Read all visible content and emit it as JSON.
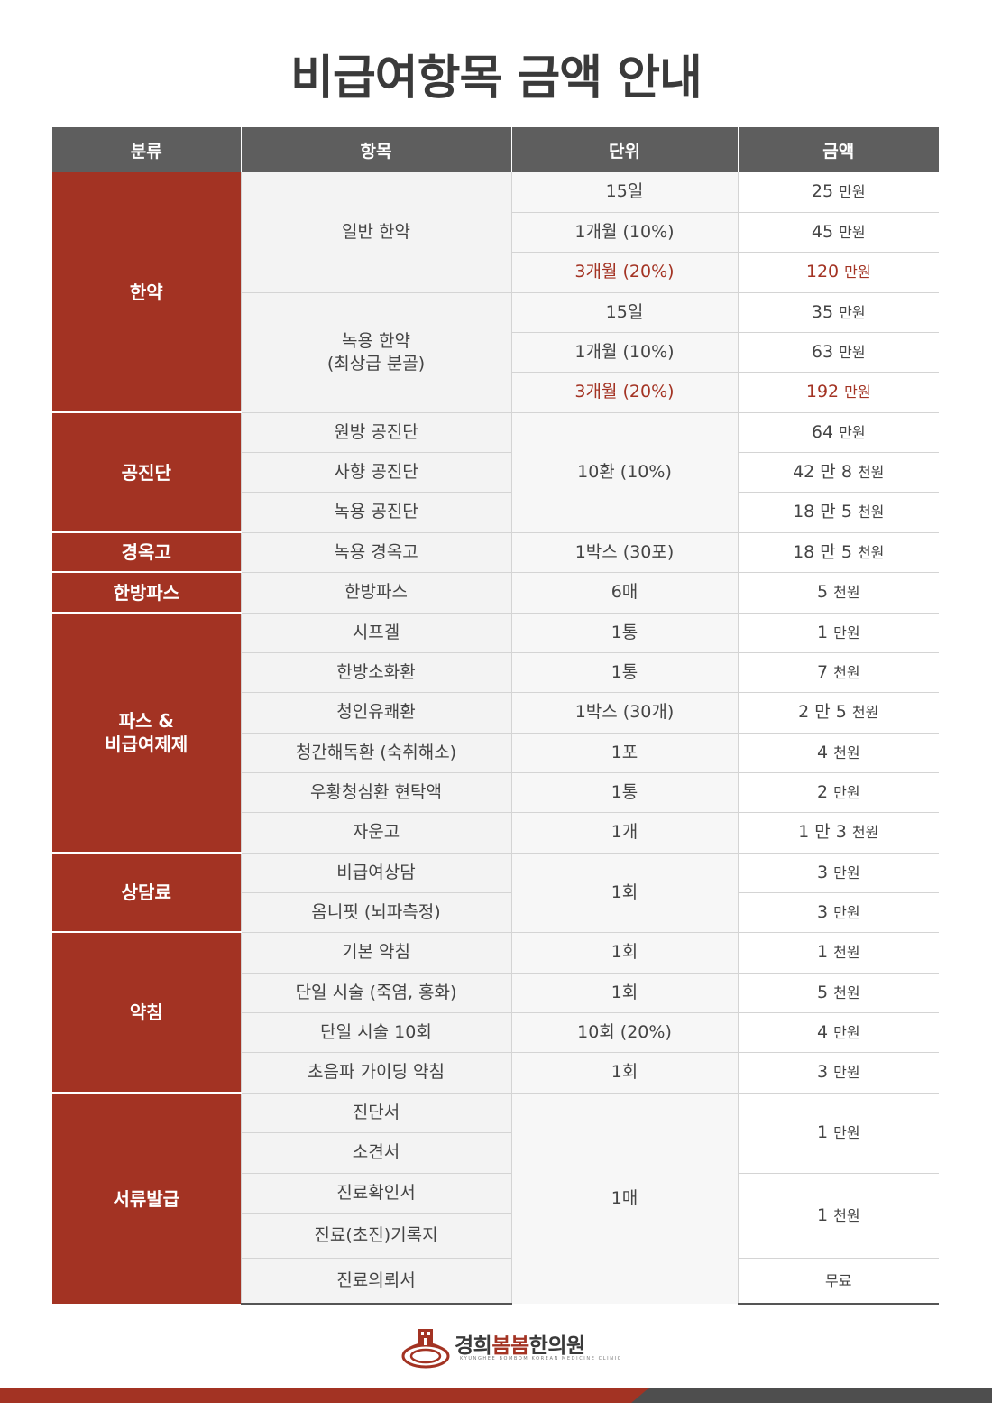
{
  "title": "비급여항목 금액 안내",
  "colors": {
    "accent": "#a33323",
    "header": "#5e5e5e"
  },
  "table": {
    "headers": [
      "분류",
      "항목",
      "단위",
      "금액"
    ],
    "groups": [
      {
        "category": "한약",
        "items": [
          {
            "name": "일반 한약",
            "options": [
              {
                "unit": "15일",
                "price": "25",
                "suffix": "만원",
                "highlight": false
              },
              {
                "unit": "1개월 (10%)",
                "price": "45",
                "suffix": "만원",
                "highlight": false
              },
              {
                "unit": "3개월 (20%)",
                "price": "120",
                "suffix": "만원",
                "highlight": true
              }
            ]
          },
          {
            "name": "녹용 한약\n(최상급 분골)",
            "options": [
              {
                "unit": "15일",
                "price": "35",
                "suffix": "만원",
                "highlight": false
              },
              {
                "unit": "1개월 (10%)",
                "price": "63",
                "suffix": "만원",
                "highlight": false
              },
              {
                "unit": "3개월 (20%)",
                "price": "192",
                "suffix": "만원",
                "highlight": true
              }
            ]
          }
        ]
      },
      {
        "category": "공진단",
        "unit": "10환 (10%)",
        "items": [
          {
            "name": "원방 공진단",
            "price": "64",
            "suffix": "만원"
          },
          {
            "name": "사향 공진단",
            "price": "42 만 8",
            "suffix": "천원"
          },
          {
            "name": "녹용 공진단",
            "price": "18 만 5",
            "suffix": "천원"
          }
        ]
      },
      {
        "category": "경옥고",
        "items": [
          {
            "name": "녹용 경옥고",
            "unit": "1박스 (30포)",
            "price": "18 만 5",
            "suffix": "천원"
          }
        ]
      },
      {
        "category": "한방파스",
        "items": [
          {
            "name": "한방파스",
            "unit": "6매",
            "price": "5",
            "suffix": "천원"
          }
        ]
      },
      {
        "category": "파스 &\n비급여제제",
        "items": [
          {
            "name": "시프겔",
            "unit": "1통",
            "price": "1",
            "suffix": "만원"
          },
          {
            "name": "한방소화환",
            "unit": "1통",
            "price": "7",
            "suffix": "천원"
          },
          {
            "name": "청인유쾌환",
            "unit": "1박스 (30개)",
            "price": "2 만 5",
            "suffix": "천원"
          },
          {
            "name": "청간해독환 (숙취해소)",
            "unit": "1포",
            "price": "4",
            "suffix": "천원"
          },
          {
            "name": "우황청심환 현탁액",
            "unit": "1통",
            "price": "2",
            "suffix": "만원"
          },
          {
            "name": "자운고",
            "unit": "1개",
            "price": "1 만 3",
            "suffix": "천원"
          }
        ]
      },
      {
        "category": "상담료",
        "unit": "1회",
        "items": [
          {
            "name": "비급여상담",
            "price": "3",
            "suffix": "만원"
          },
          {
            "name": "옴니핏 (뇌파측정)",
            "price": "3",
            "suffix": "만원"
          }
        ]
      },
      {
        "category": "약침",
        "items": [
          {
            "name": "기본 약침",
            "unit": "1회",
            "price": "1",
            "suffix": "천원"
          },
          {
            "name": "단일 시술 (죽염, 홍화)",
            "unit": "1회",
            "price": "5",
            "suffix": "천원"
          },
          {
            "name": "단일 시술 10회",
            "unit": "10회 (20%)",
            "price": "4",
            "suffix": "만원"
          },
          {
            "name": "초음파 가이딩 약침",
            "unit": "1회",
            "price": "3",
            "suffix": "만원"
          }
        ]
      },
      {
        "category": "서류발급",
        "unit": "1매",
        "items": [
          {
            "name": "진단서"
          },
          {
            "name": "소견서"
          },
          {
            "name": "진료확인서"
          },
          {
            "name": "진료(초진)기록지"
          },
          {
            "name": "진료의뢰서"
          }
        ],
        "price_groups": [
          {
            "price": "1",
            "suffix": "만원"
          },
          {
            "price": "1",
            "suffix": "천원"
          },
          {
            "price": "",
            "suffix": "무료"
          }
        ]
      }
    ]
  },
  "logo": {
    "name_prefix": "경희",
    "name_accent": "봄봄",
    "name_suffix": "한의원",
    "subtitle": "KYUNGHEE BOMBOM KOREAN MEDICINE CLINIC",
    "icon": "clinic-emblem-icon"
  }
}
